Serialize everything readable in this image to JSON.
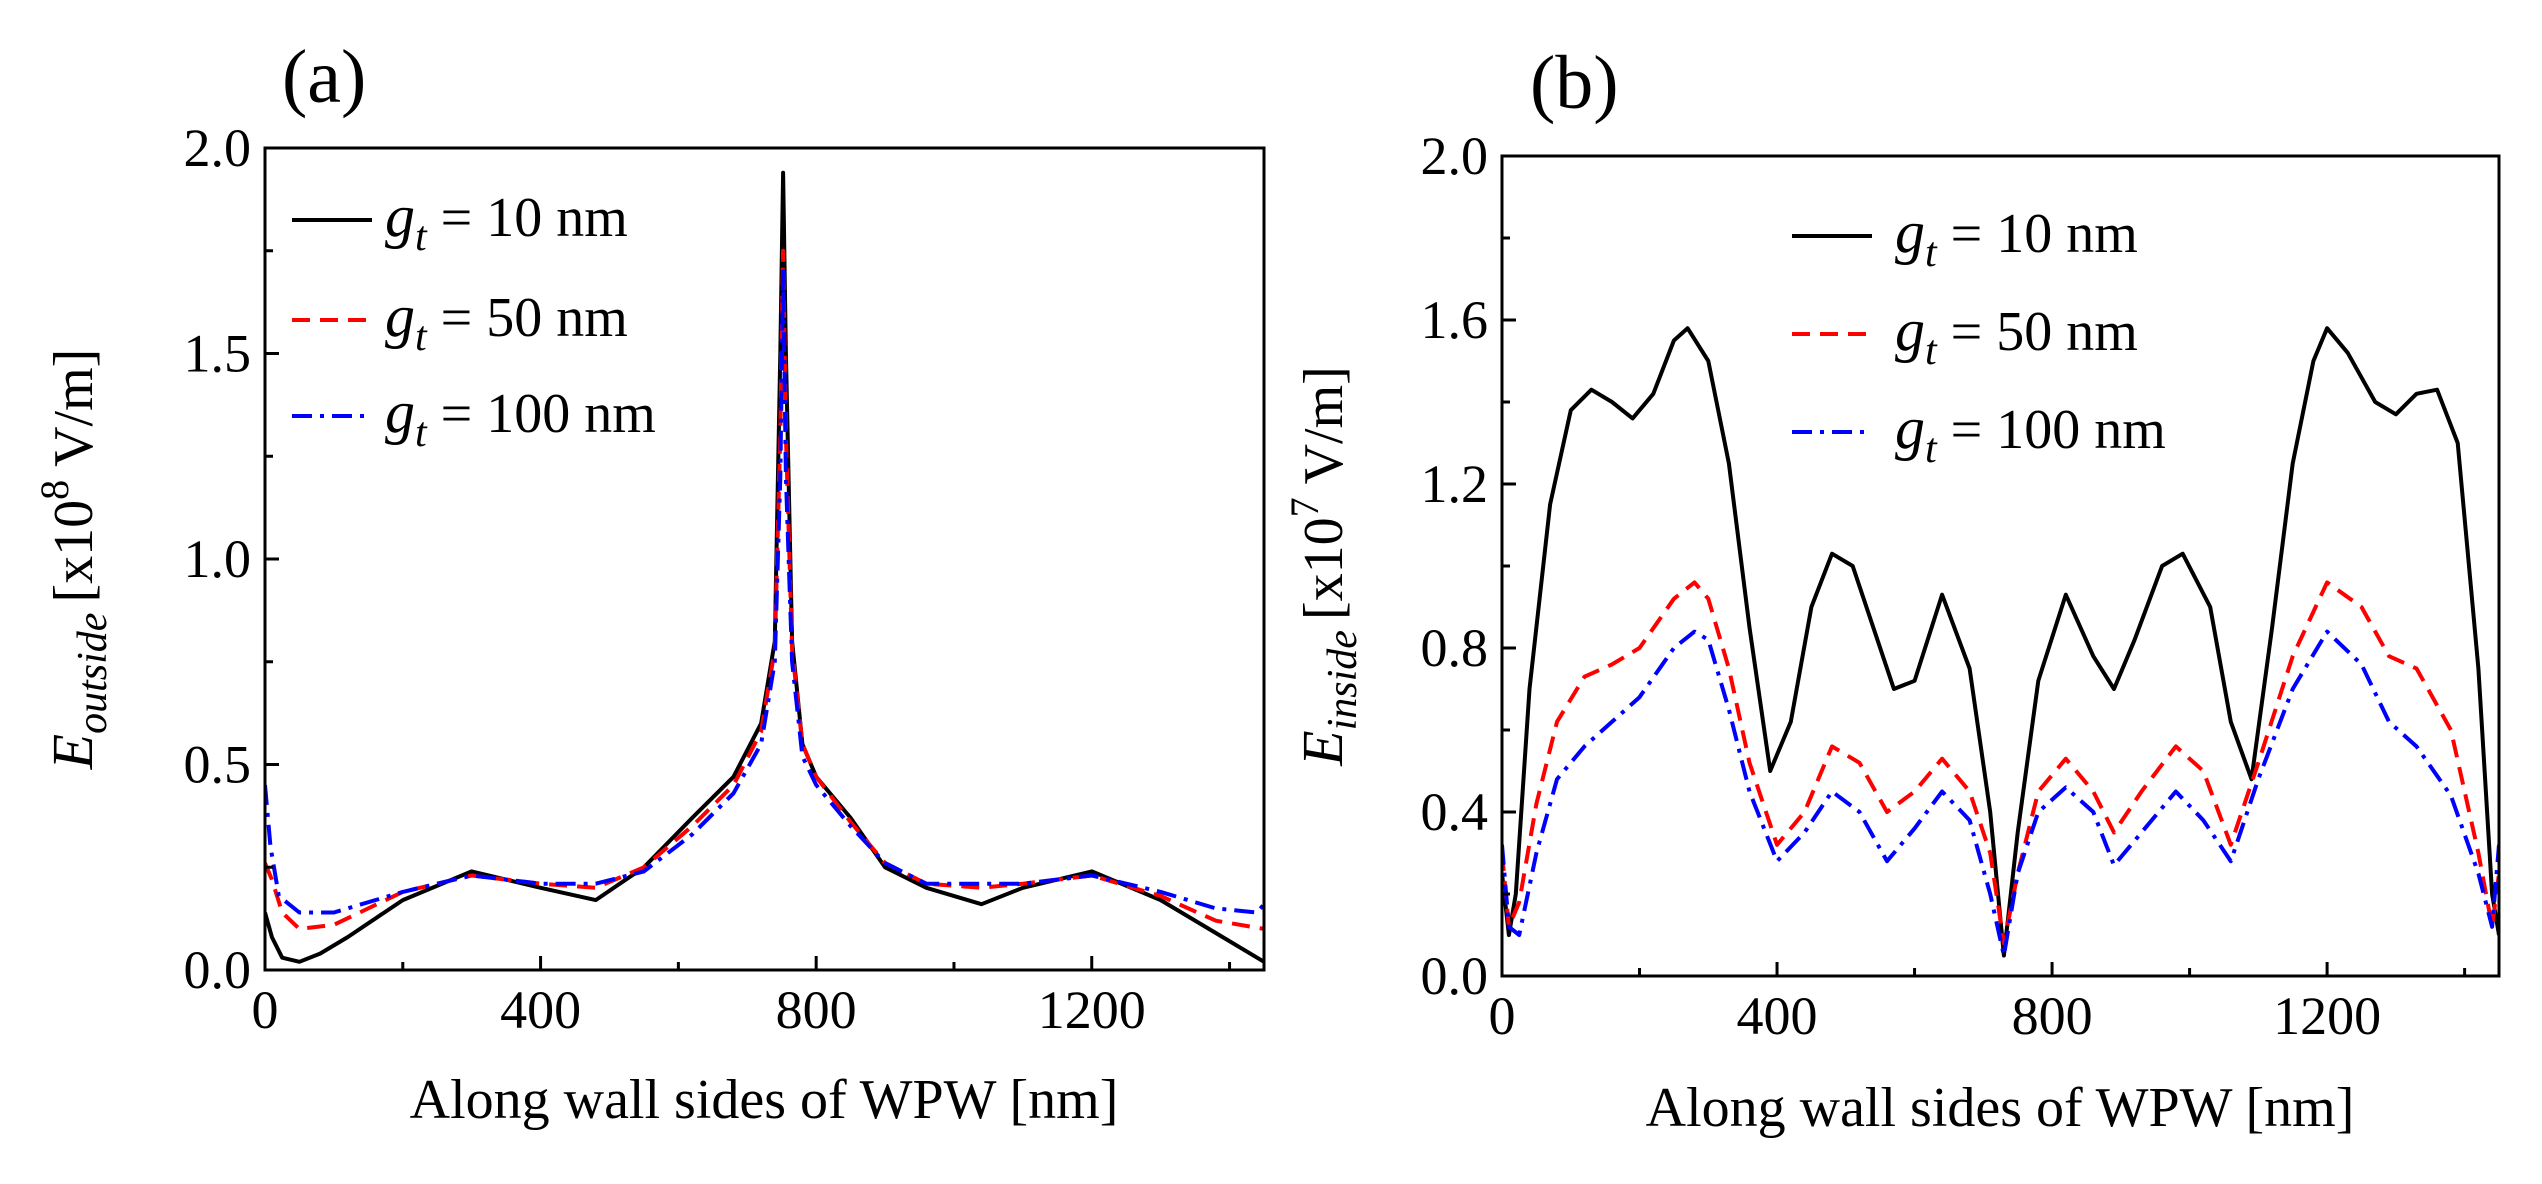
{
  "chart_data": [
    {
      "type": "line",
      "panel_label": "(a)",
      "xlabel": "Along wall sides of WPW [nm]",
      "ylabel": {
        "E": "E",
        "sub": "outside",
        "unit_pre": "[x10",
        "exp": "8",
        "unit_post": " V/m]"
      },
      "xlim": [
        0,
        1450
      ],
      "ylim": [
        0,
        2.0
      ],
      "xticks": [
        0,
        400,
        800,
        1200
      ],
      "xtick_labels": [
        "0",
        "400",
        "800",
        "1200"
      ],
      "yticks": [
        0,
        0.5,
        1.0,
        1.5,
        2.0
      ],
      "ytick_labels": [
        "0.0",
        "0.5",
        "1.0",
        "1.5",
        "2.0"
      ],
      "legend_position": "top-left",
      "series": [
        {
          "name": "g_t = 10 nm",
          "legend": {
            "g": "g",
            "sub": "t",
            "rest": " = 10 nm"
          },
          "color": "#000000",
          "dash": "solid",
          "x": [
            0,
            10,
            25,
            50,
            80,
            120,
            200,
            300,
            400,
            480,
            550,
            620,
            680,
            720,
            740,
            748,
            752,
            756,
            765,
            780,
            800,
            850,
            900,
            960,
            1040,
            1100,
            1200,
            1300,
            1380,
            1450
          ],
          "y": [
            0.14,
            0.08,
            0.03,
            0.02,
            0.04,
            0.08,
            0.17,
            0.24,
            0.2,
            0.17,
            0.25,
            0.37,
            0.47,
            0.6,
            0.8,
            1.5,
            1.94,
            1.5,
            0.8,
            0.55,
            0.47,
            0.37,
            0.25,
            0.2,
            0.16,
            0.2,
            0.24,
            0.17,
            0.09,
            0.02
          ]
        },
        {
          "name": "g_t = 50 nm",
          "legend": {
            "g": "g",
            "sub": "t",
            "rest": " = 50 nm"
          },
          "color": "#ff0000",
          "dash": "dashed",
          "x": [
            0,
            10,
            25,
            50,
            100,
            200,
            300,
            400,
            480,
            550,
            620,
            680,
            720,
            740,
            748,
            752,
            756,
            765,
            780,
            800,
            850,
            900,
            960,
            1040,
            1100,
            1200,
            1300,
            1380,
            1450
          ],
          "y": [
            0.26,
            0.22,
            0.14,
            0.1,
            0.11,
            0.19,
            0.23,
            0.21,
            0.2,
            0.25,
            0.35,
            0.45,
            0.58,
            0.78,
            1.3,
            1.75,
            1.3,
            0.78,
            0.55,
            0.47,
            0.36,
            0.26,
            0.21,
            0.2,
            0.21,
            0.23,
            0.18,
            0.12,
            0.1
          ]
        },
        {
          "name": "g_t = 100 nm",
          "legend": {
            "g": "g",
            "sub": "t",
            "rest": " = 100 nm"
          },
          "color": "#0000ff",
          "dash": "dashdot",
          "x": [
            0,
            8,
            20,
            50,
            100,
            200,
            300,
            400,
            480,
            550,
            620,
            680,
            720,
            740,
            748,
            752,
            756,
            765,
            780,
            800,
            850,
            900,
            960,
            1040,
            1100,
            1200,
            1300,
            1380,
            1440,
            1450
          ],
          "y": [
            0.45,
            0.3,
            0.18,
            0.14,
            0.14,
            0.19,
            0.23,
            0.21,
            0.21,
            0.24,
            0.33,
            0.43,
            0.55,
            0.75,
            1.2,
            1.7,
            1.2,
            0.75,
            0.52,
            0.45,
            0.35,
            0.26,
            0.21,
            0.21,
            0.21,
            0.23,
            0.19,
            0.15,
            0.14,
            0.16
          ]
        }
      ]
    },
    {
      "type": "line",
      "panel_label": "(b)",
      "xlabel": "Along wall sides of WPW [nm]",
      "ylabel": {
        "E": "E",
        "sub": "inside",
        "unit_pre": "[x10",
        "exp": "7",
        "unit_post": " V/m]"
      },
      "xlim": [
        0,
        1450
      ],
      "ylim": [
        0,
        2.0
      ],
      "xticks": [
        0,
        400,
        800,
        1200
      ],
      "xtick_labels": [
        "0",
        "400",
        "800",
        "1200"
      ],
      "yticks": [
        0,
        0.4,
        0.8,
        1.2,
        1.6,
        2.0
      ],
      "ytick_labels": [
        "0.0",
        "0.4",
        "0.8",
        "1.2",
        "1.6",
        "2.0"
      ],
      "legend_position": "top-center",
      "series": [
        {
          "name": "g_t = 10 nm",
          "legend": {
            "g": "g",
            "sub": "t",
            "rest": " = 10 nm"
          },
          "color": "#000000",
          "dash": "solid",
          "x": [
            0,
            10,
            20,
            40,
            70,
            100,
            130,
            160,
            190,
            220,
            250,
            270,
            300,
            330,
            360,
            390,
            420,
            450,
            480,
            510,
            540,
            570,
            600,
            640,
            680,
            710,
            730,
            750,
            780,
            820,
            860,
            890,
            920,
            960,
            990,
            1030,
            1060,
            1090,
            1120,
            1150,
            1180,
            1200,
            1230,
            1270,
            1300,
            1330,
            1360,
            1390,
            1420,
            1440,
            1450
          ],
          "y": [
            0.25,
            0.1,
            0.2,
            0.7,
            1.15,
            1.38,
            1.43,
            1.4,
            1.36,
            1.42,
            1.55,
            1.58,
            1.5,
            1.25,
            0.85,
            0.5,
            0.62,
            0.9,
            1.03,
            1.0,
            0.85,
            0.7,
            0.72,
            0.93,
            0.75,
            0.4,
            0.05,
            0.35,
            0.72,
            0.93,
            0.78,
            0.7,
            0.82,
            1.0,
            1.03,
            0.9,
            0.62,
            0.48,
            0.85,
            1.25,
            1.5,
            1.58,
            1.52,
            1.4,
            1.37,
            1.42,
            1.43,
            1.3,
            0.75,
            0.2,
            0.1
          ]
        },
        {
          "name": "g_t = 50 nm",
          "legend": {
            "g": "g",
            "sub": "t",
            "rest": " = 50 nm"
          },
          "color": "#ff0000",
          "dash": "dashed",
          "x": [
            0,
            10,
            25,
            50,
            80,
            120,
            160,
            200,
            250,
            280,
            300,
            330,
            360,
            400,
            440,
            480,
            520,
            560,
            600,
            640,
            680,
            710,
            730,
            750,
            780,
            820,
            860,
            890,
            930,
            980,
            1020,
            1060,
            1100,
            1150,
            1200,
            1250,
            1290,
            1330,
            1380,
            1420,
            1440,
            1450
          ],
          "y": [
            0.3,
            0.12,
            0.18,
            0.42,
            0.62,
            0.73,
            0.76,
            0.8,
            0.92,
            0.96,
            0.92,
            0.75,
            0.52,
            0.32,
            0.4,
            0.56,
            0.52,
            0.4,
            0.45,
            0.53,
            0.45,
            0.3,
            0.08,
            0.25,
            0.45,
            0.53,
            0.45,
            0.35,
            0.45,
            0.56,
            0.5,
            0.32,
            0.52,
            0.78,
            0.96,
            0.9,
            0.78,
            0.75,
            0.6,
            0.3,
            0.12,
            0.25
          ]
        },
        {
          "name": "g_t = 100 nm",
          "legend": {
            "g": "g",
            "sub": "t",
            "rest": " = 100 nm"
          },
          "color": "#0000ff",
          "dash": "dashdot",
          "x": [
            0,
            10,
            25,
            50,
            80,
            120,
            160,
            200,
            250,
            280,
            300,
            330,
            360,
            400,
            440,
            480,
            520,
            560,
            600,
            640,
            680,
            710,
            730,
            750,
            780,
            820,
            860,
            890,
            930,
            980,
            1020,
            1060,
            1100,
            1150,
            1200,
            1250,
            1290,
            1330,
            1380,
            1420,
            1440,
            1450
          ],
          "y": [
            0.32,
            0.12,
            0.1,
            0.3,
            0.48,
            0.56,
            0.62,
            0.68,
            0.8,
            0.84,
            0.82,
            0.65,
            0.45,
            0.28,
            0.35,
            0.45,
            0.4,
            0.28,
            0.36,
            0.45,
            0.38,
            0.2,
            0.05,
            0.25,
            0.4,
            0.46,
            0.4,
            0.27,
            0.35,
            0.45,
            0.38,
            0.28,
            0.48,
            0.7,
            0.84,
            0.76,
            0.62,
            0.56,
            0.44,
            0.25,
            0.12,
            0.32
          ]
        }
      ]
    }
  ]
}
